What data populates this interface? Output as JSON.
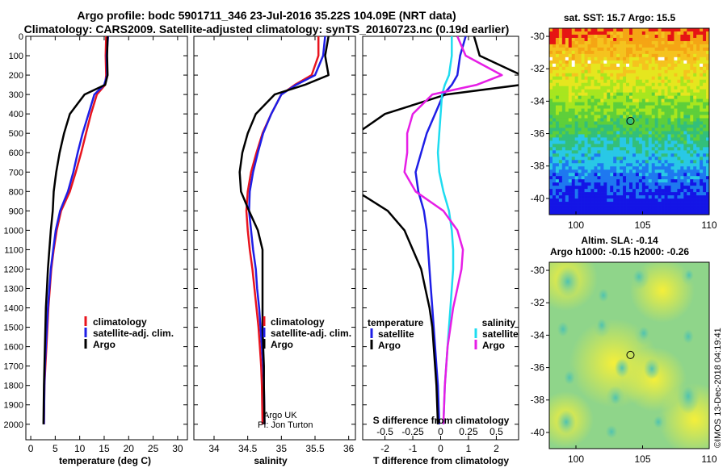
{
  "figure": {
    "title_line1": "Argo profile: bodc 5901711_346 23-Jul-2016 35.22S 104.09E (NRT data)",
    "title_line2": "Climatology: CARS2009. Satellite-adjusted climatology: synTS_20160723.nc (0.19d earlier)",
    "credit": "©IMOS 13-Dec-2018 04:19:41",
    "argo_credit_line1": "Argo UK",
    "argo_credit_line2": "PI: Jon Turton"
  },
  "colors": {
    "climatology": "#e8141e",
    "satellite": "#1e1ee6",
    "argo": "#000000",
    "s_satellite": "#1edcf0",
    "s_argo": "#e61ee6"
  },
  "depth_ticks": [
    0,
    100,
    200,
    300,
    400,
    500,
    600,
    700,
    800,
    900,
    1000,
    1100,
    1200,
    1300,
    1400,
    1500,
    1600,
    1700,
    1800,
    1900,
    2000
  ],
  "chart_data": [
    {
      "type": "line",
      "xlabel": "temperature (deg C)",
      "ylabel": "",
      "xlim": [
        -1,
        32
      ],
      "ylim": [
        2080,
        0
      ],
      "xticks": [
        0,
        5,
        10,
        15,
        20,
        25,
        30
      ],
      "legend": [
        "climatology",
        "satellite-adj. clim.",
        "Argo"
      ],
      "series": [
        {
          "name": "climatology",
          "color": "climatology",
          "x": [
            15.4,
            15.3,
            15.4,
            15.2,
            13.5,
            12.3,
            11.3,
            10.3,
            9.2,
            8.0,
            6.2,
            5.3,
            4.7,
            4.2,
            3.9,
            3.6,
            3.4,
            3.2,
            3.0,
            2.8,
            2.7
          ],
          "y": [
            0,
            100,
            200,
            250,
            300,
            400,
            500,
            600,
            700,
            800,
            900,
            1000,
            1100,
            1200,
            1300,
            1400,
            1500,
            1600,
            1700,
            1800,
            2000
          ]
        },
        {
          "name": "satellite-adj. clim.",
          "color": "satellite",
          "x": [
            15.8,
            15.5,
            15.6,
            15.0,
            13.0,
            11.8,
            10.6,
            9.6,
            8.7,
            7.6,
            6.0,
            5.1,
            4.6,
            4.1,
            3.8,
            3.5,
            3.3,
            3.1,
            2.9,
            2.8,
            2.7
          ],
          "y": [
            0,
            100,
            200,
            250,
            300,
            400,
            500,
            600,
            700,
            800,
            900,
            1000,
            1100,
            1200,
            1300,
            1400,
            1500,
            1600,
            1700,
            1800,
            2000
          ]
        },
        {
          "name": "Argo",
          "color": "argo",
          "x": [
            15.7,
            15.6,
            15.7,
            15.2,
            11.0,
            8.0,
            6.8,
            5.9,
            5.2,
            4.7,
            4.5,
            4.1,
            3.8,
            3.5,
            3.3,
            3.1,
            3.0,
            2.9,
            2.8,
            2.7,
            2.6
          ],
          "y": [
            0,
            100,
            200,
            250,
            300,
            400,
            500,
            600,
            700,
            800,
            900,
            1000,
            1100,
            1200,
            1300,
            1400,
            1500,
            1600,
            1700,
            1800,
            2000
          ]
        }
      ]
    },
    {
      "type": "line",
      "xlabel": "salinity",
      "ylabel": "",
      "xlim": [
        33.7,
        36.1
      ],
      "ylim": [
        2080,
        0
      ],
      "xticks": [
        34,
        34.5,
        35,
        35.5,
        36
      ],
      "legend": [
        "climatology",
        "satellite-adj. clim.",
        "Argo"
      ],
      "series": [
        {
          "name": "climatology",
          "color": "climatology",
          "x": [
            35.55,
            35.55,
            35.45,
            35.2,
            35.0,
            34.85,
            34.72,
            34.63,
            34.55,
            34.5,
            34.48,
            34.5,
            34.53,
            34.57,
            34.6,
            34.63,
            34.66,
            34.68,
            34.7,
            34.71,
            34.72
          ],
          "y": [
            0,
            100,
            200,
            250,
            300,
            400,
            500,
            600,
            700,
            800,
            900,
            1000,
            1100,
            1200,
            1300,
            1400,
            1500,
            1600,
            1700,
            1800,
            2000
          ]
        },
        {
          "name": "satellite-adj. clim.",
          "color": "satellite",
          "x": [
            35.65,
            35.62,
            35.5,
            35.22,
            35.0,
            34.85,
            34.73,
            34.65,
            34.58,
            34.53,
            34.52,
            34.55,
            34.58,
            34.62,
            34.64,
            34.67,
            34.69,
            34.71,
            34.73,
            34.74,
            34.75
          ],
          "y": [
            0,
            100,
            200,
            250,
            300,
            400,
            500,
            600,
            700,
            800,
            900,
            1000,
            1100,
            1200,
            1300,
            1400,
            1500,
            1600,
            1700,
            1800,
            2000
          ]
        },
        {
          "name": "Argo",
          "color": "argo",
          "x": [
            35.7,
            35.65,
            35.7,
            35.35,
            34.9,
            34.62,
            34.5,
            34.42,
            34.38,
            34.4,
            34.52,
            34.65,
            34.72,
            34.72,
            34.72,
            34.72,
            34.72,
            34.73,
            34.74,
            34.74,
            34.75
          ],
          "y": [
            0,
            100,
            200,
            250,
            300,
            400,
            500,
            600,
            700,
            800,
            900,
            1000,
            1100,
            1200,
            1300,
            1400,
            1500,
            1600,
            1700,
            1800,
            2000
          ]
        }
      ]
    },
    {
      "type": "line",
      "xlabel": "T difference from climatology",
      "x2label": "S difference from climatology",
      "ylabel": "",
      "xlim": [
        -2.8,
        2.8
      ],
      "ylim": [
        2080,
        0
      ],
      "xticks": [
        -2,
        -1,
        0,
        1,
        2
      ],
      "x2ticks": [
        "-0.5",
        "-0.25",
        "0",
        "0.25",
        "0.5"
      ],
      "legend_left_title": "temperature",
      "legend_right_title": "salinity",
      "legend_left": [
        "satellite",
        "Argo"
      ],
      "legend_right": [
        "satellite",
        "Argo"
      ],
      "series": [
        {
          "name": "satellite",
          "group": "temperature",
          "color": "satellite",
          "x": [
            0.9,
            0.7,
            0.6,
            0.4,
            0.1,
            -0.2,
            -0.5,
            -0.7,
            -0.9,
            -0.8,
            -0.6,
            -0.5,
            -0.45,
            -0.4,
            -0.35,
            -0.3,
            -0.25,
            -0.2,
            -0.15,
            -0.1,
            -0.05
          ],
          "y": [
            0,
            100,
            200,
            250,
            300,
            400,
            500,
            600,
            700,
            800,
            900,
            1000,
            1100,
            1200,
            1300,
            1400,
            1500,
            1600,
            1700,
            1800,
            2000
          ]
        },
        {
          "name": "Argo",
          "group": "temperature",
          "color": "argo",
          "x": [
            1.2,
            1.4,
            2.9,
            2.9,
            0.2,
            -2.0,
            -3.0,
            -3.0,
            -3.0,
            -3.0,
            -1.9,
            -1.3,
            -1.0,
            -0.7,
            -0.55,
            -0.4,
            -0.3,
            -0.25,
            -0.2,
            -0.15,
            -0.1
          ],
          "y": [
            0,
            100,
            200,
            250,
            300,
            400,
            500,
            600,
            700,
            800,
            900,
            1000,
            1100,
            1200,
            1300,
            1400,
            1500,
            1600,
            1700,
            1800,
            2000
          ]
        },
        {
          "name": "satellite",
          "group": "salinity",
          "color": "s_satellite",
          "x": [
            0.4,
            0.4,
            0.3,
            0.15,
            0.05,
            0.0,
            -0.05,
            -0.1,
            -0.05,
            0.1,
            0.3,
            0.4,
            0.45,
            0.45,
            0.4,
            0.35,
            0.3,
            0.25,
            0.2,
            0.15,
            0.1
          ],
          "y": [
            0,
            100,
            200,
            250,
            300,
            400,
            500,
            600,
            700,
            800,
            900,
            1000,
            1100,
            1200,
            1300,
            1400,
            1500,
            1600,
            1700,
            1800,
            2000
          ]
        },
        {
          "name": "Argo",
          "group": "salinity",
          "color": "s_argo",
          "x": [
            0.6,
            0.9,
            2.2,
            1.3,
            -0.3,
            -1.0,
            -1.2,
            -1.2,
            -1.3,
            -0.9,
            0.1,
            0.6,
            0.8,
            0.75,
            0.6,
            0.45,
            0.35,
            0.25,
            0.2,
            0.15,
            0.1
          ],
          "y": [
            0,
            100,
            200,
            250,
            300,
            400,
            500,
            600,
            700,
            800,
            900,
            1000,
            1100,
            1200,
            1300,
            1400,
            1500,
            1600,
            1700,
            1800,
            2000
          ]
        }
      ]
    },
    {
      "type": "heatmap",
      "title": "sat. SST: 15.7  Argo: 15.5",
      "xticks": [
        100,
        105,
        110
      ],
      "yticks": [
        -30,
        -32,
        -34,
        -36,
        -38,
        -40
      ],
      "xlim": [
        98,
        110
      ],
      "ylim": [
        -41,
        -29.5
      ],
      "marker": [
        104.09,
        -35.22
      ]
    },
    {
      "type": "heatmap",
      "title_line1": "Altim. SLA: -0.14",
      "title_line2": "Argo h1000: -0.15 h2000: -0.26",
      "xticks": [
        100,
        105,
        110
      ],
      "yticks": [
        -30,
        -32,
        -34,
        -36,
        -38,
        -40
      ],
      "xlim": [
        98,
        110
      ],
      "ylim": [
        -41,
        -29.5
      ],
      "marker": [
        104.09,
        -35.22
      ]
    }
  ]
}
